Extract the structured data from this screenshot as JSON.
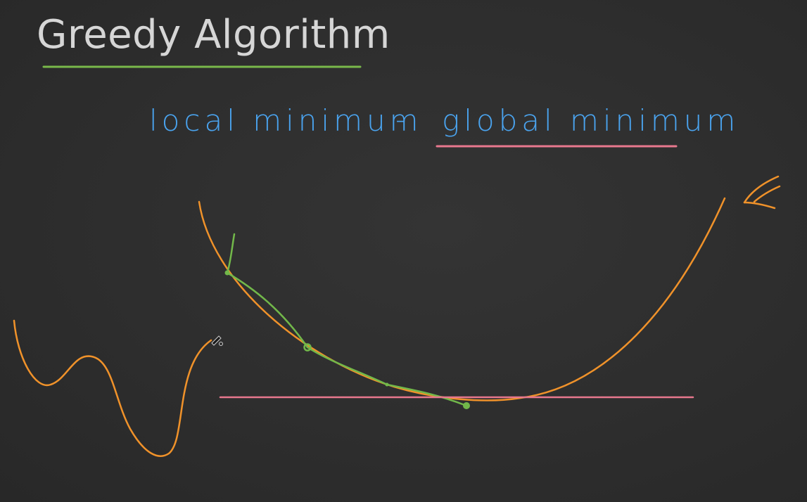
{
  "slide": {
    "title": "Greedy Algorithm",
    "title_color": "#d6d6d6",
    "background": "#2e2e2e"
  },
  "notes": {
    "local_label": "local minimum",
    "dash": "-",
    "global_label": "global minimum",
    "text_color": "#4aa3ee"
  },
  "colors": {
    "title_underline": "#79b84a",
    "global_underline": "#e8788e",
    "curve": "#f0922a",
    "steps": "#72b84a",
    "minimum_line": "#e8788e"
  },
  "icons": {
    "arrow": "arrow-icon",
    "cursor": "pen-cursor-icon"
  }
}
